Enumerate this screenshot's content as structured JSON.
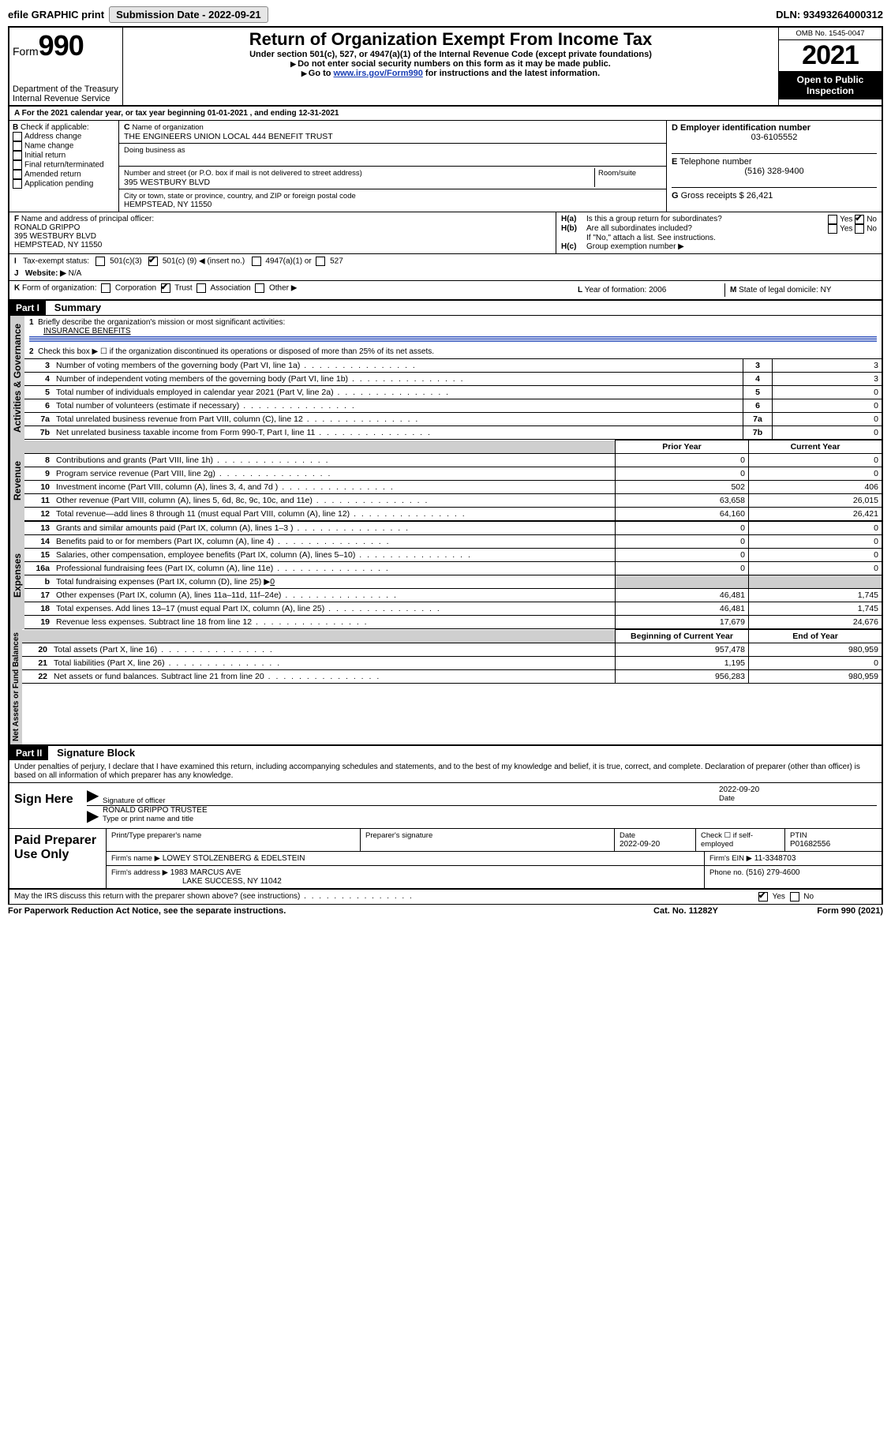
{
  "topbar": {
    "efile": "efile GRAPHIC print",
    "submission_label": "Submission Date - 2022-09-21",
    "dln": "DLN: 93493264000312"
  },
  "header": {
    "form_label": "Form",
    "form_no": "990",
    "dept": "Department of the Treasury",
    "irs": "Internal Revenue Service",
    "title": "Return of Organization Exempt From Income Tax",
    "sub": "Under section 501(c), 527, or 4947(a)(1) of the Internal Revenue Code (except private foundations)",
    "instr1": "Do not enter social security numbers on this form as it may be made public.",
    "instr2_pre": "Go to ",
    "instr2_link": "www.irs.gov/Form990",
    "instr2_post": " for instructions and the latest information.",
    "omb": "OMB No. 1545-0047",
    "year": "2021",
    "open": "Open to Public Inspection"
  },
  "A": {
    "text": "For the 2021 calendar year, or tax year beginning 01-01-2021   , and ending 12-31-2021"
  },
  "B": {
    "label": "Check if applicable:",
    "opts": [
      "Address change",
      "Name change",
      "Initial return",
      "Final return/terminated",
      "Amended return",
      "Application pending"
    ]
  },
  "C": {
    "name_label": "Name of organization",
    "name": "THE ENGINEERS UNION LOCAL 444 BENEFIT TRUST",
    "dba_label": "Doing business as",
    "street_label": "Number and street (or P.O. box if mail is not delivered to street address)",
    "room_label": "Room/suite",
    "street": "395 WESTBURY BLVD",
    "city_label": "City or town, state or province, country, and ZIP or foreign postal code",
    "city": "HEMPSTEAD, NY  11550"
  },
  "D": {
    "label": "Employer identification number",
    "val": "03-6105552"
  },
  "E": {
    "label": "Telephone number",
    "val": "(516) 328-9400"
  },
  "G": {
    "label": "Gross receipts $",
    "val": "26,421"
  },
  "F": {
    "label": "Name and address of principal officer:",
    "name": "RONALD GRIPPO",
    "addr1": "395 WESTBURY BLVD",
    "addr2": "HEMPSTEAD, NY  11550"
  },
  "H": {
    "a": "Is this a group return for subordinates?",
    "b": "Are all subordinates included?",
    "b_note": "If \"No,\" attach a list. See instructions.",
    "c": "Group exemption number ▶",
    "yes": "Yes",
    "no": "No"
  },
  "I": {
    "label": "Tax-exempt status:",
    "c3": "501(c)(3)",
    "c_pre": "501(c) (",
    "c_num": "9",
    "c_post": ") ◀ (insert no.)",
    "a1": "4947(a)(1) or",
    "s527": "527"
  },
  "J": {
    "label": "Website: ▶",
    "val": "N/A"
  },
  "K": {
    "label": "Form of organization:",
    "opts": [
      "Corporation",
      "Trust",
      "Association",
      "Other ▶"
    ],
    "checked": 1
  },
  "L": {
    "label": "Year of formation:",
    "val": "2006"
  },
  "M": {
    "label": "State of legal domicile:",
    "val": "NY"
  },
  "partI": {
    "title": "Part I",
    "name": "Summary",
    "l1": "Briefly describe the organization's mission or most significant activities:",
    "l1v": "INSURANCE BENEFITS",
    "l2": "Check this box ▶ ☐  if the organization discontinued its operations or disposed of more than 25% of its net assets.",
    "sections": {
      "gov": "Activities & Governance",
      "rev": "Revenue",
      "exp": "Expenses",
      "net": "Net Assets or Fund Balances"
    },
    "col_prior": "Prior Year",
    "col_curr": "Current Year",
    "col_begin": "Beginning of Current Year",
    "col_end": "End of Year",
    "rows_gov": [
      {
        "n": "3",
        "t": "Number of voting members of the governing body (Part VI, line 1a)",
        "v": "3"
      },
      {
        "n": "4",
        "t": "Number of independent voting members of the governing body (Part VI, line 1b)",
        "v": "3"
      },
      {
        "n": "5",
        "t": "Total number of individuals employed in calendar year 2021 (Part V, line 2a)",
        "v": "0"
      },
      {
        "n": "6",
        "t": "Total number of volunteers (estimate if necessary)",
        "v": "0"
      },
      {
        "n": "7a",
        "t": "Total unrelated business revenue from Part VIII, column (C), line 12",
        "v": "0"
      },
      {
        "n": "7b",
        "t": "Net unrelated business taxable income from Form 990-T, Part I, line 11",
        "v": "0"
      }
    ],
    "rows_rev": [
      {
        "n": "8",
        "t": "Contributions and grants (Part VIII, line 1h)",
        "p": "0",
        "c": "0"
      },
      {
        "n": "9",
        "t": "Program service revenue (Part VIII, line 2g)",
        "p": "0",
        "c": "0"
      },
      {
        "n": "10",
        "t": "Investment income (Part VIII, column (A), lines 3, 4, and 7d )",
        "p": "502",
        "c": "406"
      },
      {
        "n": "11",
        "t": "Other revenue (Part VIII, column (A), lines 5, 6d, 8c, 9c, 10c, and 11e)",
        "p": "63,658",
        "c": "26,015"
      },
      {
        "n": "12",
        "t": "Total revenue—add lines 8 through 11 (must equal Part VIII, column (A), line 12)",
        "p": "64,160",
        "c": "26,421"
      }
    ],
    "rows_exp": [
      {
        "n": "13",
        "t": "Grants and similar amounts paid (Part IX, column (A), lines 1–3 )",
        "p": "0",
        "c": "0"
      },
      {
        "n": "14",
        "t": "Benefits paid to or for members (Part IX, column (A), line 4)",
        "p": "0",
        "c": "0"
      },
      {
        "n": "15",
        "t": "Salaries, other compensation, employee benefits (Part IX, column (A), lines 5–10)",
        "p": "0",
        "c": "0"
      },
      {
        "n": "16a",
        "t": "Professional fundraising fees (Part IX, column (A), line 11e)",
        "p": "0",
        "c": "0"
      },
      {
        "n": "b",
        "t": "Total fundraising expenses (Part IX, column (D), line 25) ▶",
        "p": "",
        "c": "",
        "grey": true,
        "u": "0"
      },
      {
        "n": "17",
        "t": "Other expenses (Part IX, column (A), lines 11a–11d, 11f–24e)",
        "p": "46,481",
        "c": "1,745"
      },
      {
        "n": "18",
        "t": "Total expenses. Add lines 13–17 (must equal Part IX, column (A), line 25)",
        "p": "46,481",
        "c": "1,745"
      },
      {
        "n": "19",
        "t": "Revenue less expenses. Subtract line 18 from line 12",
        "p": "17,679",
        "c": "24,676"
      }
    ],
    "rows_net": [
      {
        "n": "20",
        "t": "Total assets (Part X, line 16)",
        "p": "957,478",
        "c": "980,959"
      },
      {
        "n": "21",
        "t": "Total liabilities (Part X, line 26)",
        "p": "1,195",
        "c": "0"
      },
      {
        "n": "22",
        "t": "Net assets or fund balances. Subtract line 21 from line 20",
        "p": "956,283",
        "c": "980,959"
      }
    ]
  },
  "partII": {
    "title": "Part II",
    "name": "Signature Block",
    "decl": "Under penalties of perjury, I declare that I have examined this return, including accompanying schedules and statements, and to the best of my knowledge and belief, it is true, correct, and complete. Declaration of preparer (other than officer) is based on all information of which preparer has any knowledge."
  },
  "sign": {
    "here": "Sign Here",
    "sig_label": "Signature of officer",
    "date_label": "Date",
    "date": "2022-09-20",
    "name": "RONALD GRIPPO  TRUSTEE",
    "name_label": "Type or print name and title"
  },
  "paid": {
    "title": "Paid Preparer Use Only",
    "c1": "Print/Type preparer's name",
    "c2": "Preparer's signature",
    "c3": "Date",
    "c3v": "2022-09-20",
    "c4": "Check ☐ if self-employed",
    "c5": "PTIN",
    "c5v": "P01682556",
    "firm_label": "Firm's name   ▶",
    "firm": "LOWEY STOLZENBERG & EDELSTEIN",
    "ein_label": "Firm's EIN ▶",
    "ein": "11-3348703",
    "addr_label": "Firm's address ▶",
    "addr1": "1983 MARCUS AVE",
    "addr2": "LAKE SUCCESS, NY  11042",
    "phone_label": "Phone no.",
    "phone": "(516) 279-4600"
  },
  "bottom": {
    "q": "May the IRS discuss this return with the preparer shown above? (see instructions)",
    "yes": "Yes",
    "no": "No",
    "pra": "For Paperwork Reduction Act Notice, see the separate instructions.",
    "cat": "Cat. No. 11282Y",
    "form": "Form 990 (2021)"
  }
}
